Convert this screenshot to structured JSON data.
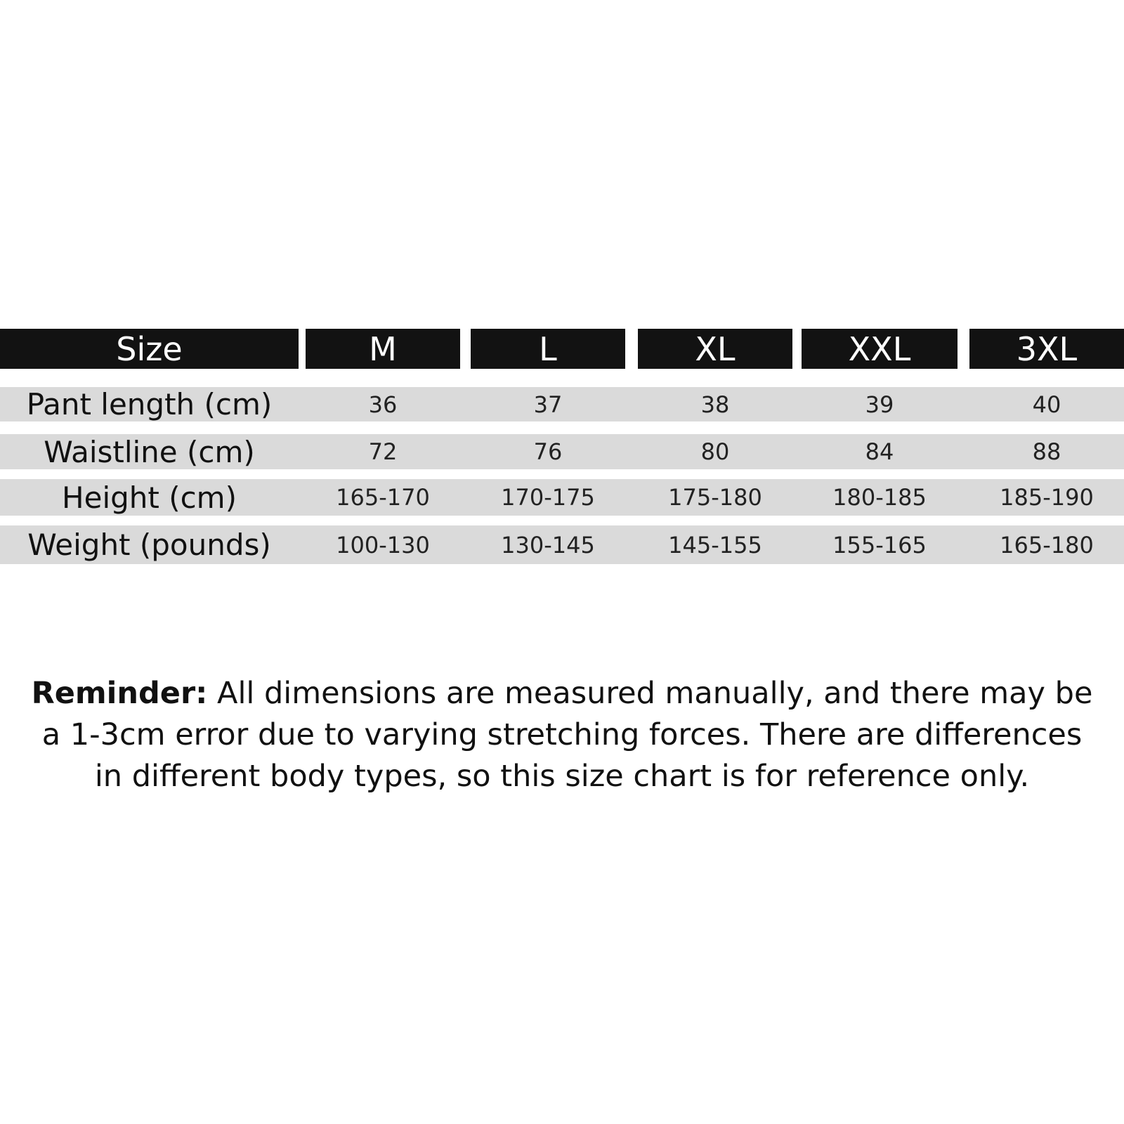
{
  "table": {
    "header": [
      "Size",
      "M",
      "L",
      "XL",
      "XXL",
      "3XL"
    ],
    "rows": [
      {
        "label": "Pant length (cm)",
        "values": [
          "36",
          "37",
          "38",
          "39",
          "40"
        ]
      },
      {
        "label": "Waistline (cm)",
        "values": [
          "72",
          "76",
          "80",
          "84",
          "88"
        ]
      },
      {
        "label": "Height (cm)",
        "values": [
          "165-170",
          "170-175",
          "175-180",
          "180-185",
          "185-190"
        ]
      },
      {
        "label": "Weight (pounds)",
        "values": [
          "100-130",
          "130-145",
          "145-155",
          "155-165",
          "165-180"
        ]
      }
    ]
  },
  "reminder": {
    "label": "Reminder:",
    "text": " All dimensions are measured manually, and there may be a 1-3cm error due to varying stretching forces. There are differences in different body types, so this size chart is for reference only."
  },
  "colors": {
    "header_bg": "#121212",
    "row_bg": "#dadada"
  }
}
